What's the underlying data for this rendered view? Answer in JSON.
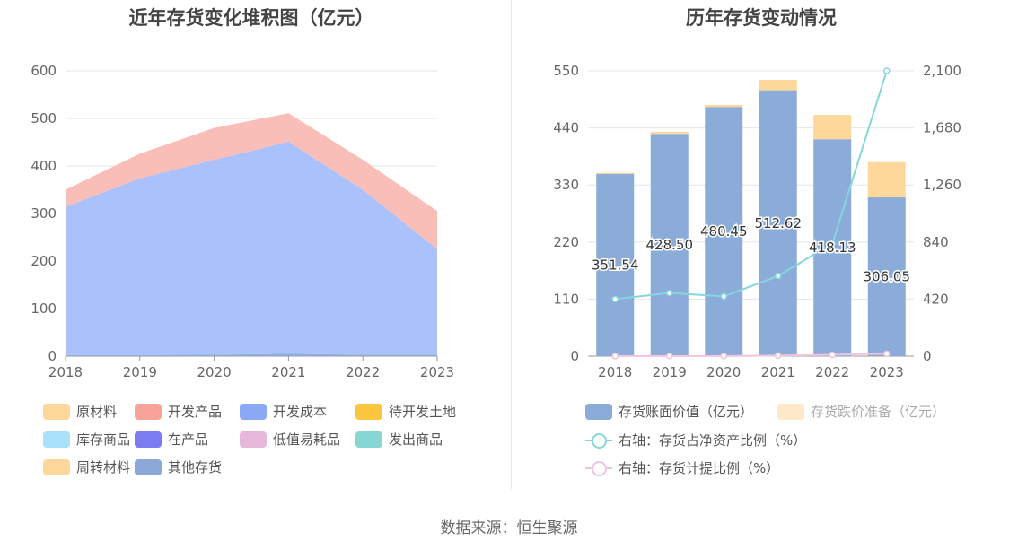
{
  "left": {
    "title": "近年存货变化堆积图（亿元）",
    "legend": [
      {
        "label": "原材料",
        "color": "#FDD89A"
      },
      {
        "label": "开发产品",
        "color": "#F7A39A"
      },
      {
        "label": "开发成本",
        "color": "#8BA8F7"
      },
      {
        "label": "待开发土地",
        "color": "#F9C63E"
      },
      {
        "label": "库存商品",
        "color": "#A9E0FA"
      },
      {
        "label": "在产品",
        "color": "#7B7CF0"
      },
      {
        "label": "低值易耗品",
        "color": "#E8B8DC"
      },
      {
        "label": "发出商品",
        "color": "#86D6D4"
      },
      {
        "label": "周转材料",
        "color": "#FDD89A"
      },
      {
        "label": "其他存货",
        "color": "#8BA8D8"
      }
    ]
  },
  "right": {
    "title": "历年存货变动情况",
    "legend": [
      {
        "label": "存货账面价值（亿元）",
        "color": "#8BABD9",
        "kind": "box"
      },
      {
        "label": "存货跌价准备（亿元）",
        "color": "#FDE8C8",
        "kind": "box"
      },
      {
        "label": "右轴：存货占净资产比例（%）",
        "color": "#86D6DD",
        "kind": "line"
      },
      {
        "label": "右轴：存货计提比例（%）",
        "color": "#F0C4DC",
        "kind": "line"
      }
    ]
  },
  "source": "数据来源：恒生聚源",
  "chart_data": [
    {
      "type": "area",
      "title": "近年存货变化堆积图（亿元）",
      "x": [
        "2018",
        "2019",
        "2020",
        "2021",
        "2022",
        "2023"
      ],
      "ylim": [
        0,
        600
      ],
      "yticks": [
        0,
        100,
        200,
        300,
        400,
        500,
        600
      ],
      "stacked": true,
      "series": [
        {
          "name": "其他存货",
          "color": "#8BA8D8",
          "values": [
            2,
            2,
            3,
            5,
            3,
            3
          ]
        },
        {
          "name": "开发成本",
          "color": "#A6BEFB",
          "values": [
            312,
            372,
            410,
            446,
            347,
            222
          ]
        },
        {
          "name": "开发产品",
          "color": "#F9BAB4",
          "values": [
            36,
            52,
            67,
            60,
            63,
            80
          ]
        }
      ],
      "grid": true
    },
    {
      "type": "bar",
      "title": "历年存货变动情况",
      "categories": [
        "2018",
        "2019",
        "2020",
        "2021",
        "2022",
        "2023"
      ],
      "ylim": [
        0,
        550
      ],
      "yticks": [
        0,
        110,
        220,
        330,
        440,
        550
      ],
      "y2lim": [
        0,
        2100
      ],
      "y2ticks": [
        "0",
        "420",
        "840",
        "1,260",
        "1,680",
        "2,100"
      ],
      "series": [
        {
          "name": "存货账面价值（亿元）",
          "color": "#8BABD9",
          "values": [
            351.54,
            428.5,
            480.45,
            512.62,
            418.13,
            306.05
          ]
        },
        {
          "name": "存货跌价准备（亿元）",
          "color": "#FDD89A",
          "values": [
            2,
            4,
            4,
            20,
            47,
            68
          ]
        },
        {
          "name": "右轴：存货占净资产比例（%）",
          "color": "#86D6DD",
          "axis": "right",
          "type": "line",
          "values": [
            420,
            465,
            440,
            590,
            830,
            2100
          ]
        },
        {
          "name": "右轴：存货计提比例（%）",
          "color": "#F0C4DC",
          "axis": "right",
          "type": "line",
          "values": [
            0.5,
            0.9,
            0.8,
            3.8,
            10.1,
            18.2
          ]
        }
      ],
      "data_labels": [
        "351.54",
        "428.50",
        "480.45",
        "512.62",
        "418.13",
        "306.05"
      ],
      "grid": true
    }
  ]
}
